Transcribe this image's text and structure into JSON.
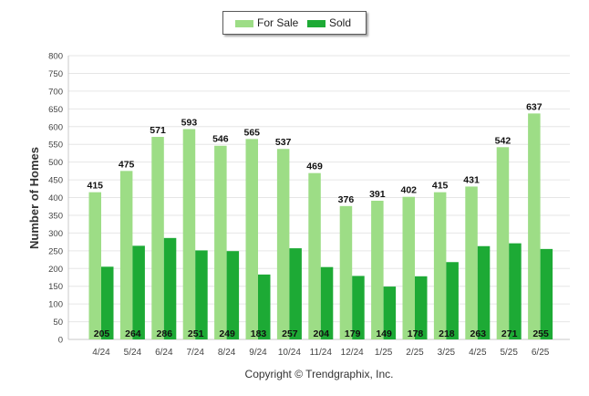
{
  "chart_data": {
    "type": "bar",
    "categories": [
      "4/24",
      "5/24",
      "6/24",
      "7/24",
      "8/24",
      "9/24",
      "10/24",
      "11/24",
      "12/24",
      "1/25",
      "2/25",
      "3/25",
      "4/25",
      "5/25",
      "6/25"
    ],
    "series": [
      {
        "name": "For Sale",
        "color": "#9ddd86",
        "values": [
          415,
          475,
          571,
          593,
          546,
          565,
          537,
          469,
          376,
          391,
          402,
          415,
          431,
          542,
          637
        ]
      },
      {
        "name": "Sold",
        "color": "#1daa35",
        "values": [
          205,
          264,
          286,
          251,
          249,
          183,
          257,
          204,
          179,
          149,
          178,
          218,
          263,
          271,
          255
        ]
      }
    ],
    "ylabel": "Number of Homes",
    "ylim": [
      0,
      800
    ],
    "yticks": [
      0,
      50,
      100,
      150,
      200,
      250,
      300,
      350,
      400,
      450,
      500,
      550,
      600,
      650,
      700,
      750,
      800
    ],
    "grid": true,
    "legend_position": "top-center"
  },
  "legend": {
    "for_sale": "For Sale",
    "sold": "Sold"
  },
  "footer": {
    "copyright": "Copyright © Trendgraphix, Inc."
  }
}
